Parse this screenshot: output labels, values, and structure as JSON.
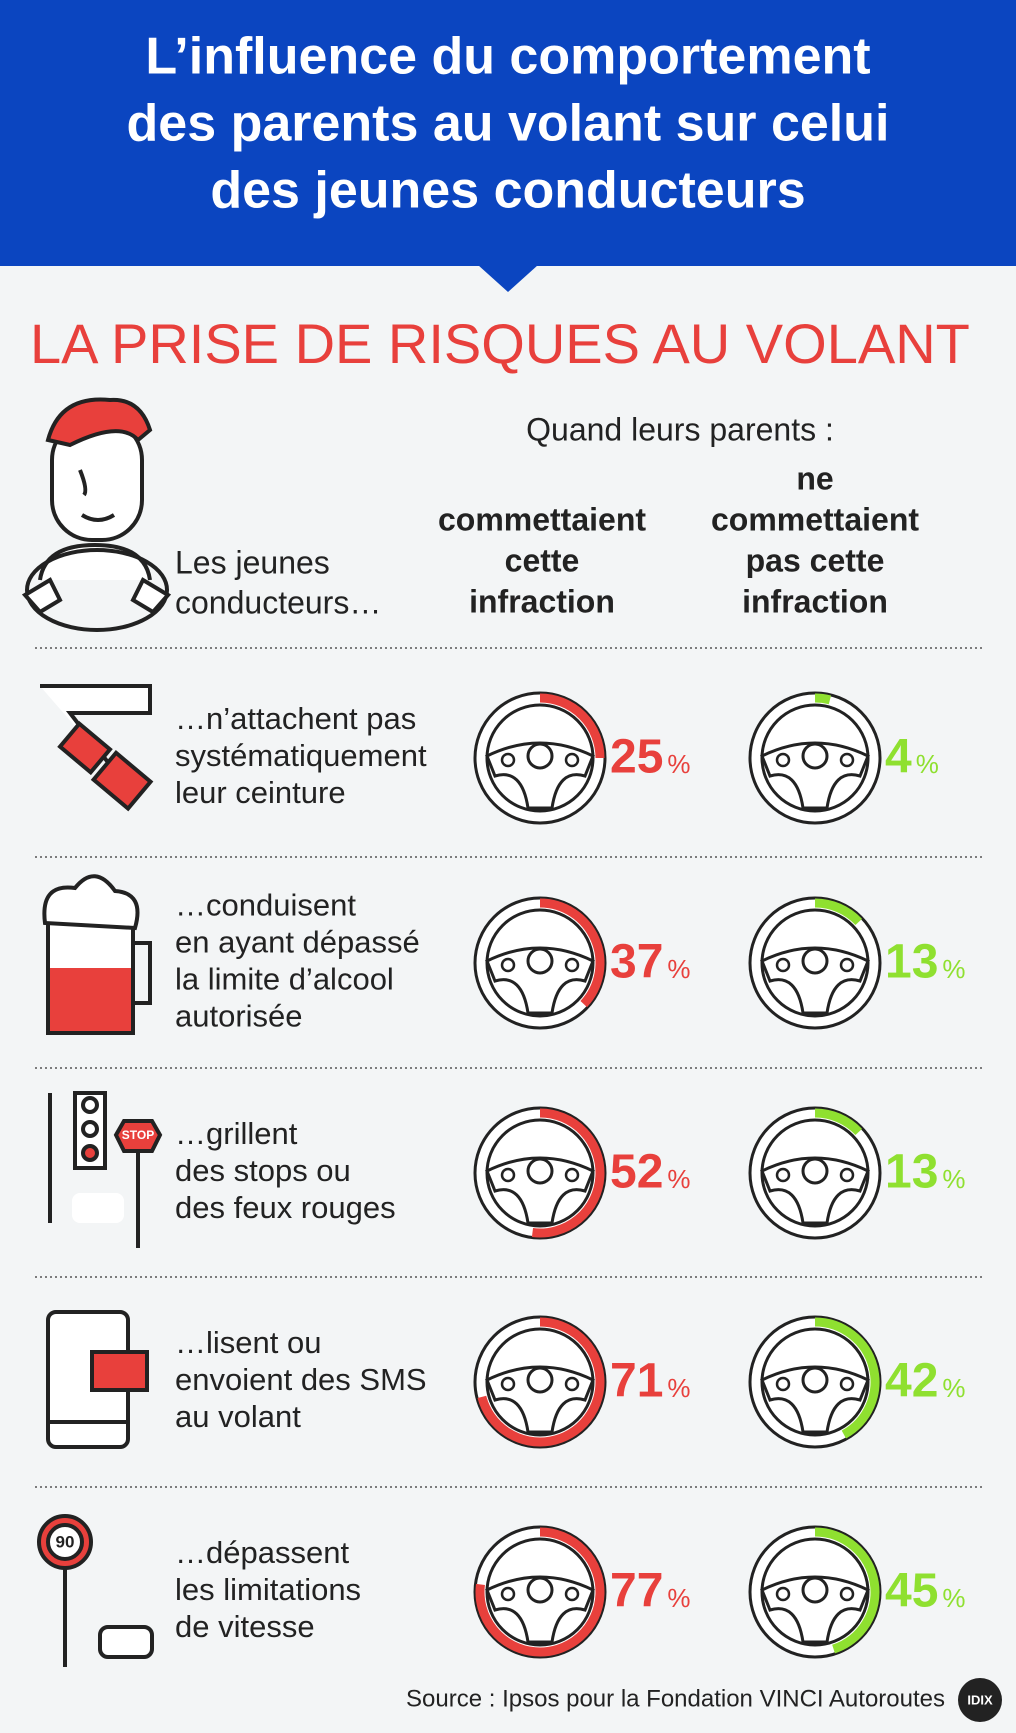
{
  "header": {
    "title": [
      "L’influence du comportement",
      "des parents au volant sur celui",
      "des jeunes conducteurs"
    ]
  },
  "section_title": "LA PRISE DE RISQUES AU VOLANT",
  "columns": {
    "caption": "Quand leurs parents :",
    "subject": [
      "Les jeunes",
      "conducteurs…"
    ],
    "with": [
      "commettaient",
      "cette",
      "infraction"
    ],
    "without": [
      "ne",
      "commettaient",
      "pas cette",
      "infraction"
    ]
  },
  "unit": "%",
  "colors": {
    "with": "#e8403c",
    "without": "#8fe030"
  },
  "rows": [
    {
      "label": [
        "…n’attachent pas",
        "systématiquement",
        "leur ceinture"
      ],
      "with": 25,
      "without": 4
    },
    {
      "label": [
        "…conduisent",
        "en ayant dépassé",
        "la limite d’alcool",
        "autorisée"
      ],
      "with": 37,
      "without": 13
    },
    {
      "label": [
        "…grillent",
        "des stops ou",
        "des feux rouges"
      ],
      "with": 52,
      "without": 13
    },
    {
      "label": [
        "…lisent ou",
        "envoient des SMS",
        "au volant"
      ],
      "with": 71,
      "without": 42
    },
    {
      "label": [
        "…dépassent",
        "les limitations",
        "de vitesse"
      ],
      "with": 77,
      "without": 45
    }
  ],
  "icon_labels": {
    "stop": "STOP",
    "speed": "90"
  },
  "source": "Source : Ipsos pour la Fondation VINCI Autoroutes",
  "logo": "IDIX"
}
